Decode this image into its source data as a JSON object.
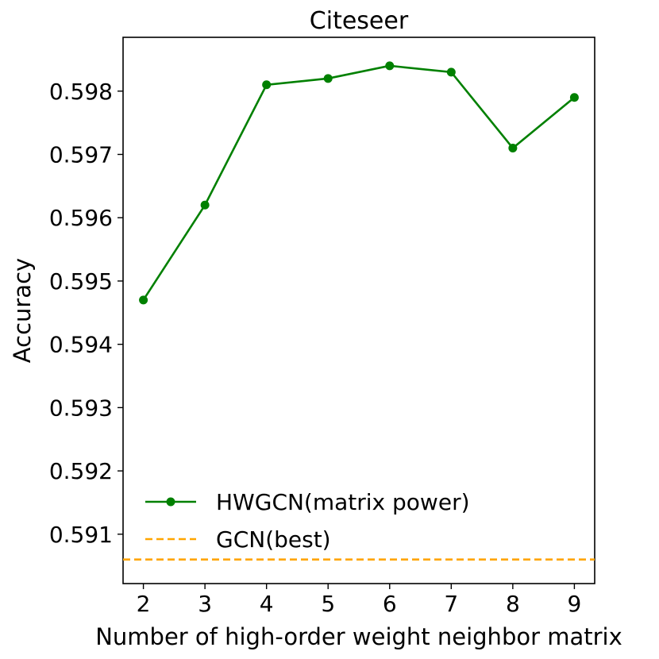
{
  "chart_data": {
    "type": "line",
    "title": "Citeseer",
    "xlabel": "Number of high-order weight neighbor matrix",
    "ylabel": "Accuracy",
    "x": [
      2,
      3,
      4,
      5,
      6,
      7,
      8,
      9
    ],
    "xticks": [
      "2",
      "3",
      "4",
      "5",
      "6",
      "7",
      "8",
      "9"
    ],
    "yticks": [
      "0.591",
      "0.592",
      "0.593",
      "0.594",
      "0.595",
      "0.596",
      "0.597",
      "0.598"
    ],
    "yticks_values": [
      0.591,
      0.592,
      0.593,
      0.594,
      0.595,
      0.596,
      0.597,
      0.598
    ],
    "xlim": [
      1.67,
      9.33
    ],
    "ylim": [
      0.59022,
      0.59885
    ],
    "series": [
      {
        "name": "HWGCN(matrix power)",
        "style": "solid-line-with-circle-markers",
        "color": "#008000",
        "values": [
          0.5947,
          0.5962,
          0.5981,
          0.5982,
          0.5984,
          0.5983,
          0.5971,
          0.5979
        ]
      },
      {
        "name": "GCN(best)",
        "style": "dashed-horizontal-line",
        "color": "#FFA500",
        "value": 0.5906
      }
    ],
    "legend_position": "lower-left",
    "grid": false
  }
}
